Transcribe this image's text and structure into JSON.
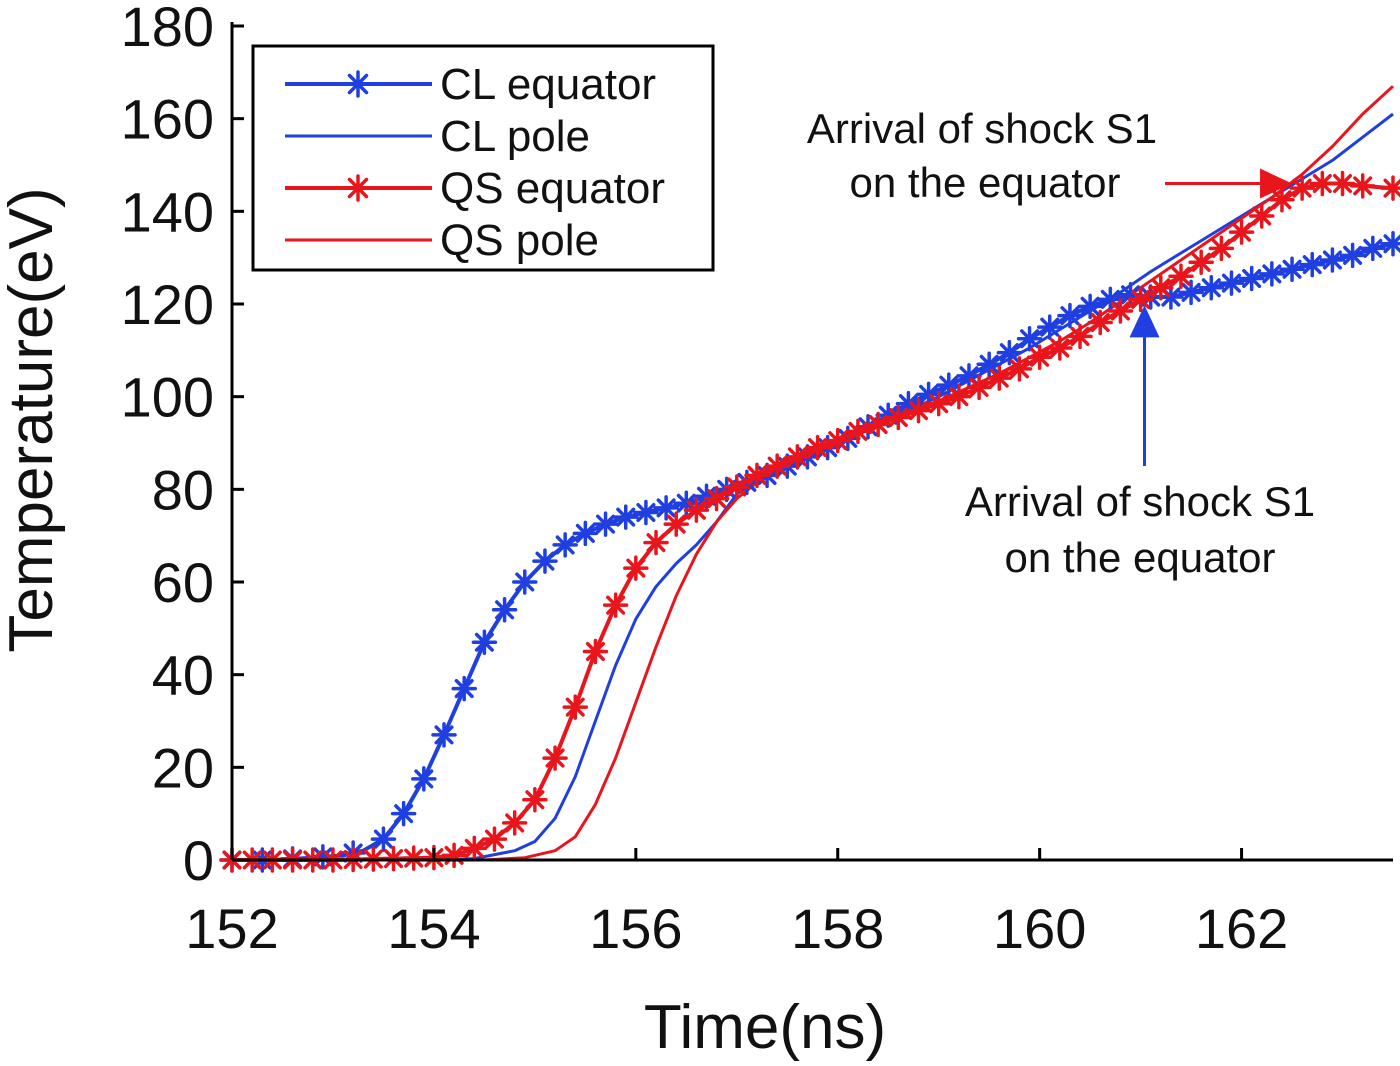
{
  "chart_data": {
    "type": "line",
    "title": "",
    "xlabel": "Time(ns)",
    "ylabel": "Temperature(eV)",
    "xlim": [
      152,
      163.5
    ],
    "ylim": [
      0,
      180
    ],
    "xticks": [
      152,
      154,
      156,
      158,
      160,
      162
    ],
    "yticks": [
      0,
      20,
      40,
      60,
      80,
      100,
      120,
      140,
      160,
      180
    ],
    "grid": false,
    "legend_position": "top-left",
    "series": [
      {
        "name": "CL equator",
        "color": "#1f3fe0",
        "marker": "asterisk",
        "line_width": 4,
        "points": [
          [
            152.0,
            0
          ],
          [
            152.4,
            0
          ],
          [
            152.8,
            0.5
          ],
          [
            153.1,
            1
          ],
          [
            153.3,
            2
          ],
          [
            153.5,
            4.5
          ],
          [
            153.7,
            10
          ],
          [
            153.9,
            17.5
          ],
          [
            154.1,
            27
          ],
          [
            154.3,
            37
          ],
          [
            154.5,
            47
          ],
          [
            154.7,
            54
          ],
          [
            154.9,
            60
          ],
          [
            155.1,
            64.5
          ],
          [
            155.3,
            68
          ],
          [
            155.5,
            70.5
          ],
          [
            155.7,
            72.5
          ],
          [
            155.9,
            74
          ],
          [
            156.1,
            75
          ],
          [
            156.3,
            76
          ],
          [
            156.5,
            77
          ],
          [
            156.7,
            78.5
          ],
          [
            156.9,
            80
          ],
          [
            157.1,
            81.5
          ],
          [
            157.3,
            83
          ],
          [
            157.5,
            85
          ],
          [
            157.7,
            87
          ],
          [
            157.9,
            89
          ],
          [
            158.1,
            91
          ],
          [
            158.3,
            93.5
          ],
          [
            158.5,
            96
          ],
          [
            158.7,
            98.5
          ],
          [
            158.9,
            100.5
          ],
          [
            159.1,
            102.5
          ],
          [
            159.3,
            104.5
          ],
          [
            159.5,
            107
          ],
          [
            159.7,
            109.5
          ],
          [
            159.9,
            112.5
          ],
          [
            160.1,
            115
          ],
          [
            160.3,
            117.5
          ],
          [
            160.5,
            119.5
          ],
          [
            160.7,
            121
          ],
          [
            160.9,
            122
          ],
          [
            161.1,
            121.5
          ],
          [
            161.3,
            121.5
          ],
          [
            161.5,
            122.5
          ],
          [
            161.7,
            123.5
          ],
          [
            161.9,
            124.5
          ],
          [
            162.1,
            125.5
          ],
          [
            162.3,
            126.5
          ],
          [
            162.5,
            127.5
          ],
          [
            162.7,
            128.5
          ],
          [
            162.9,
            129.5
          ],
          [
            163.1,
            130.5
          ],
          [
            163.3,
            132
          ],
          [
            163.5,
            133
          ]
        ],
        "marker_x": [
          152.0,
          152.3,
          152.6,
          152.9,
          153.2,
          153.5,
          153.7,
          153.9,
          154.1,
          154.3,
          154.5,
          154.7,
          154.9,
          155.1,
          155.3,
          155.5,
          155.7,
          155.9,
          156.1,
          156.3,
          156.5,
          156.7,
          156.9,
          157.1,
          157.3,
          157.5,
          157.7,
          157.9,
          158.1,
          158.3,
          158.5,
          158.7,
          158.9,
          159.1,
          159.3,
          159.5,
          159.7,
          159.9,
          160.1,
          160.3,
          160.5,
          160.7,
          160.9,
          161.1,
          161.3,
          161.5,
          161.7,
          161.9,
          162.1,
          162.3,
          162.5,
          162.7,
          162.9,
          163.1,
          163.3,
          163.5
        ]
      },
      {
        "name": "CL pole",
        "color": "#1f3fe0",
        "marker": "none",
        "line_width": 3,
        "points": [
          [
            152.0,
            0
          ],
          [
            154.0,
            0
          ],
          [
            154.4,
            0.3
          ],
          [
            154.8,
            2
          ],
          [
            155.0,
            4
          ],
          [
            155.2,
            9
          ],
          [
            155.4,
            18
          ],
          [
            155.6,
            30
          ],
          [
            155.8,
            42
          ],
          [
            156.0,
            52
          ],
          [
            156.2,
            59
          ],
          [
            156.4,
            64
          ],
          [
            156.6,
            68
          ],
          [
            156.8,
            73
          ],
          [
            157.0,
            79
          ],
          [
            157.2,
            82
          ],
          [
            157.5,
            85
          ],
          [
            157.8,
            88
          ],
          [
            158.1,
            91
          ],
          [
            158.4,
            94
          ],
          [
            158.7,
            97
          ],
          [
            159.0,
            100
          ],
          [
            159.3,
            103.5
          ],
          [
            159.6,
            107
          ],
          [
            159.9,
            110.5
          ],
          [
            160.2,
            114.5
          ],
          [
            160.5,
            118.5
          ],
          [
            160.8,
            122.5
          ],
          [
            161.1,
            127
          ],
          [
            161.4,
            131
          ],
          [
            161.7,
            135
          ],
          [
            162.0,
            139
          ],
          [
            162.3,
            143
          ],
          [
            162.6,
            147
          ],
          [
            162.9,
            151
          ],
          [
            163.2,
            156
          ],
          [
            163.5,
            161
          ]
        ]
      },
      {
        "name": "QS equator",
        "color": "#e8161c",
        "marker": "asterisk",
        "line_width": 4,
        "points": [
          [
            152.0,
            0
          ],
          [
            153.0,
            0
          ],
          [
            154.0,
            0.5
          ],
          [
            154.2,
            1
          ],
          [
            154.4,
            2.5
          ],
          [
            154.6,
            4.5
          ],
          [
            154.8,
            8
          ],
          [
            155.0,
            13
          ],
          [
            155.2,
            22
          ],
          [
            155.4,
            33
          ],
          [
            155.6,
            45
          ],
          [
            155.8,
            55
          ],
          [
            156.0,
            63
          ],
          [
            156.2,
            68.5
          ],
          [
            156.4,
            72.5
          ],
          [
            156.6,
            75.5
          ],
          [
            156.8,
            78
          ],
          [
            157.0,
            80.5
          ],
          [
            157.2,
            83
          ],
          [
            157.4,
            85
          ],
          [
            157.6,
            87
          ],
          [
            157.8,
            89
          ],
          [
            158.0,
            90.5
          ],
          [
            158.2,
            92.5
          ],
          [
            158.4,
            94
          ],
          [
            158.6,
            95.5
          ],
          [
            158.8,
            97
          ],
          [
            159.0,
            98.5
          ],
          [
            159.2,
            100
          ],
          [
            159.4,
            102
          ],
          [
            159.6,
            104
          ],
          [
            159.8,
            106
          ],
          [
            160.0,
            108.5
          ],
          [
            160.2,
            110.5
          ],
          [
            160.4,
            113
          ],
          [
            160.6,
            116
          ],
          [
            160.8,
            118.5
          ],
          [
            161.0,
            121
          ],
          [
            161.2,
            123.5
          ],
          [
            161.4,
            126
          ],
          [
            161.6,
            129
          ],
          [
            161.8,
            132
          ],
          [
            162.0,
            135.5
          ],
          [
            162.2,
            139
          ],
          [
            162.4,
            142.5
          ],
          [
            162.6,
            145
          ],
          [
            162.8,
            146
          ],
          [
            163.0,
            146
          ],
          [
            163.2,
            145.5
          ],
          [
            163.5,
            145
          ]
        ],
        "marker_x": [
          152.0,
          152.2,
          152.4,
          152.6,
          152.8,
          153.0,
          153.2,
          153.4,
          153.6,
          153.8,
          154.0,
          154.2,
          154.4,
          154.6,
          154.8,
          155.0,
          155.2,
          155.4,
          155.6,
          155.8,
          156.0,
          156.2,
          156.4,
          156.6,
          156.8,
          157.0,
          157.2,
          157.4,
          157.6,
          157.8,
          158.0,
          158.2,
          158.4,
          158.6,
          158.8,
          159.0,
          159.2,
          159.4,
          159.6,
          159.8,
          160.0,
          160.2,
          160.4,
          160.6,
          160.8,
          161.0,
          161.2,
          161.4,
          161.6,
          161.8,
          162.0,
          162.2,
          162.4,
          162.6,
          162.8,
          163.0,
          163.2,
          163.5
        ]
      },
      {
        "name": "QS pole",
        "color": "#e8161c",
        "marker": "none",
        "line_width": 3,
        "points": [
          [
            152.0,
            0
          ],
          [
            154.5,
            0
          ],
          [
            154.9,
            0.5
          ],
          [
            155.2,
            2
          ],
          [
            155.4,
            5
          ],
          [
            155.6,
            12
          ],
          [
            155.8,
            22
          ],
          [
            156.0,
            34
          ],
          [
            156.2,
            46
          ],
          [
            156.4,
            57
          ],
          [
            156.6,
            66
          ],
          [
            156.8,
            73
          ],
          [
            157.0,
            78
          ],
          [
            157.2,
            81.5
          ],
          [
            157.5,
            85
          ],
          [
            157.8,
            88
          ],
          [
            158.1,
            91
          ],
          [
            158.4,
            94
          ],
          [
            158.7,
            96.5
          ],
          [
            159.0,
            99
          ],
          [
            159.3,
            102
          ],
          [
            159.6,
            105
          ],
          [
            159.9,
            108.5
          ],
          [
            160.2,
            112
          ],
          [
            160.5,
            116
          ],
          [
            160.8,
            120.5
          ],
          [
            161.1,
            125
          ],
          [
            161.4,
            129.5
          ],
          [
            161.7,
            134
          ],
          [
            162.0,
            138.5
          ],
          [
            162.3,
            143
          ],
          [
            162.6,
            148
          ],
          [
            162.9,
            154
          ],
          [
            163.2,
            161
          ],
          [
            163.5,
            167
          ]
        ]
      }
    ],
    "annotations": [
      {
        "lines": [
          "Arrival of shock S1",
          "on the equator"
        ],
        "color": "#e8161c",
        "arrow_tip": [
          162.5,
          146
        ],
        "arrow_direction": "right"
      },
      {
        "lines": [
          "Arrival of shock S1",
          "on the equator"
        ],
        "color": "#1f3fe0",
        "arrow_tip": [
          160.9,
          121
        ],
        "arrow_direction": "up"
      }
    ]
  }
}
